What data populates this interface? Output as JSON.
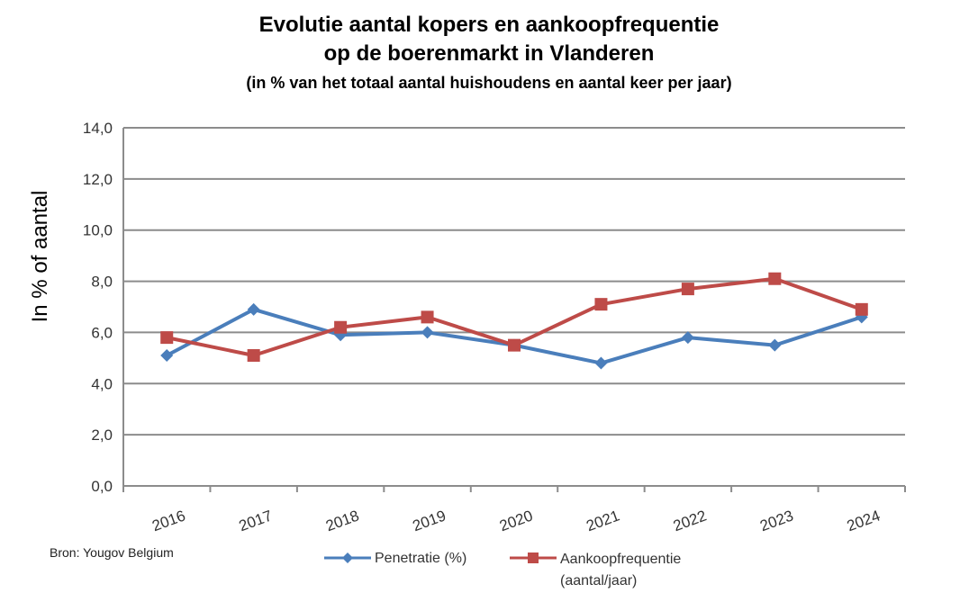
{
  "chart_data": {
    "type": "line",
    "title_line1": "Evolutie aantal kopers en aankoopfrequentie",
    "title_line2": "op de  boerenmarkt in Vlanderen",
    "subtitle": "(in % van het totaal aantal huishoudens en aantal keer per jaar)",
    "ylabel": "In % of aantal",
    "xlabel": "",
    "categories": [
      "2016",
      "2017",
      "2018",
      "2019",
      "2020",
      "2021",
      "2022",
      "2023",
      "2024"
    ],
    "ylim": [
      0,
      14
    ],
    "yticks": [
      "0,0",
      "2,0",
      "4,0",
      "6,0",
      "8,0",
      "10,0",
      "12,0",
      "14,0"
    ],
    "grid": true,
    "legend_position": "bottom",
    "series": [
      {
        "name": "Penetratie (%)",
        "color": "#4a7ebb",
        "marker": "diamond",
        "values": [
          5.1,
          6.9,
          5.9,
          6.0,
          5.5,
          4.8,
          5.8,
          5.5,
          6.6
        ]
      },
      {
        "name": "Aankoopfrequentie (aantal/jaar)",
        "color": "#be4b48",
        "marker": "square",
        "values": [
          5.8,
          5.1,
          6.2,
          6.6,
          5.5,
          7.1,
          7.7,
          8.1,
          6.9
        ]
      }
    ]
  },
  "source": "Bron: Yougov Belgium"
}
